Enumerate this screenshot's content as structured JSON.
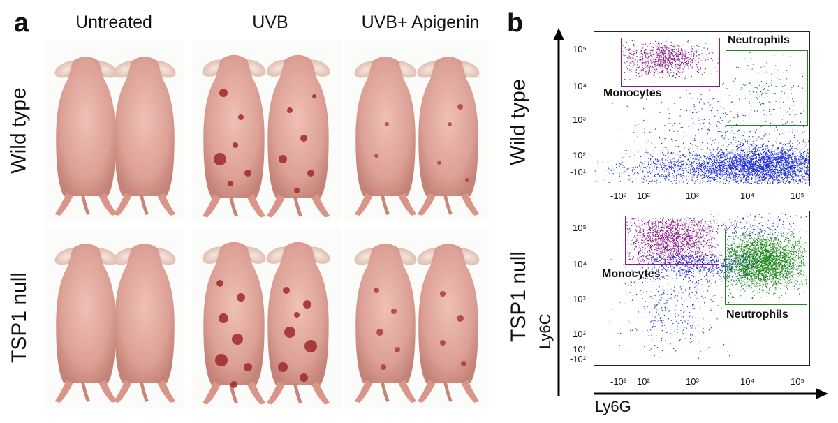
{
  "panel_a": {
    "letter": "a",
    "columns": [
      "Untreated",
      "UVB",
      "UVB+ Apigenin"
    ],
    "rows": [
      "Wild type",
      "TSP1 null"
    ]
  },
  "panel_b": {
    "letter": "b",
    "row_labels": [
      "Wild type",
      "TSP1 null"
    ],
    "x_axis_label": "Ly6G",
    "y_axis_label": "Ly6C",
    "x_ticks": [
      "-10²",
      "10²",
      "10³",
      "10⁴",
      "10⁵"
    ],
    "y_ticks_top": [
      "10⁵",
      "10⁴",
      "10³",
      "10²",
      "-10¹"
    ],
    "y_ticks_bottom": [
      "10⁵",
      "10⁴",
      "10³",
      "10²",
      "-10¹",
      "-10²"
    ],
    "gates": {
      "monocytes": "Monocytes",
      "neutrophils": "Neutrophils"
    },
    "colors": {
      "monocytes": "#8b1a8b",
      "neutrophils": "#1f8a1f",
      "other": "#1f2fd6"
    }
  }
}
